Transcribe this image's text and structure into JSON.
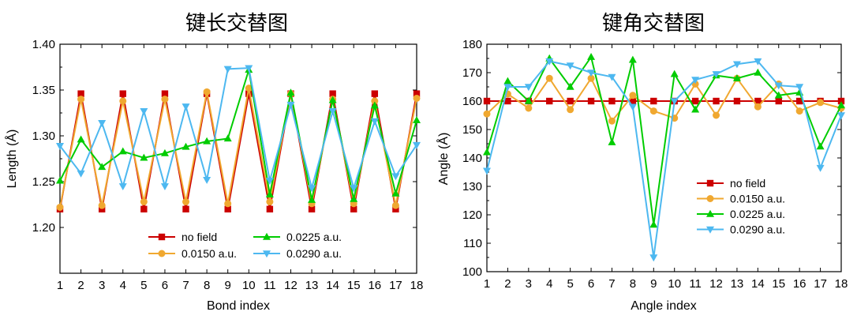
{
  "chart_data": [
    {
      "type": "line",
      "title": "键长交替图",
      "xlabel": "Bond index",
      "ylabel": "Length (Å)",
      "xlim": [
        1,
        18
      ],
      "ylim": [
        1.15,
        1.4
      ],
      "xticks": [
        1,
        2,
        3,
        4,
        5,
        6,
        7,
        8,
        9,
        10,
        11,
        12,
        13,
        14,
        15,
        16,
        17,
        18
      ],
      "yticks": [
        1.2,
        1.25,
        1.3,
        1.35,
        1.4
      ],
      "ytick_labels": [
        "1.20",
        "1.25",
        "1.30",
        "1.35",
        "1.40"
      ],
      "legend_position": "bottom-center",
      "legend_columns": 2,
      "x": [
        1,
        2,
        3,
        4,
        5,
        6,
        7,
        8,
        9,
        10,
        11,
        12,
        13,
        14,
        15,
        16,
        17,
        18
      ],
      "series": [
        {
          "name": "no field",
          "color": "#cc0000",
          "marker": "square",
          "values": [
            1.22,
            1.346,
            1.22,
            1.346,
            1.22,
            1.346,
            1.22,
            1.346,
            1.22,
            1.346,
            1.22,
            1.346,
            1.22,
            1.346,
            1.22,
            1.346,
            1.22,
            1.346
          ]
        },
        {
          "name": "0.0150 a.u.",
          "color": "#f0a830",
          "marker": "circle",
          "values": [
            1.222,
            1.34,
            1.224,
            1.338,
            1.228,
            1.34,
            1.228,
            1.348,
            1.226,
            1.352,
            1.228,
            1.346,
            1.226,
            1.34,
            1.226,
            1.338,
            1.224,
            1.341
          ]
        },
        {
          "name": "0.0225 a.u.",
          "color": "#00cc00",
          "marker": "triangle-up",
          "values": [
            1.251,
            1.296,
            1.266,
            1.283,
            1.276,
            1.281,
            1.288,
            1.294,
            1.297,
            1.372,
            1.236,
            1.347,
            1.23,
            1.339,
            1.231,
            1.333,
            1.237,
            1.317
          ]
        },
        {
          "name": "0.0290 a.u.",
          "color": "#4db8f0",
          "marker": "triangle-down",
          "values": [
            1.289,
            1.259,
            1.314,
            1.245,
            1.327,
            1.245,
            1.332,
            1.252,
            1.373,
            1.374,
            1.251,
            1.334,
            1.243,
            1.327,
            1.243,
            1.316,
            1.256,
            1.29
          ]
        }
      ]
    },
    {
      "type": "line",
      "title": "键角交替图",
      "xlabel": "Angle index",
      "ylabel": "Angle (Å)",
      "xlim": [
        1,
        18
      ],
      "ylim": [
        100,
        180
      ],
      "xticks": [
        1,
        2,
        3,
        4,
        5,
        6,
        7,
        8,
        9,
        10,
        11,
        12,
        13,
        14,
        15,
        16,
        17,
        18
      ],
      "yticks": [
        100,
        110,
        120,
        130,
        140,
        150,
        160,
        170,
        180
      ],
      "ytick_labels": [
        "100",
        "110",
        "120",
        "130",
        "140",
        "150",
        "160",
        "170",
        "180"
      ],
      "legend_position": "bottom-right",
      "legend_columns": 1,
      "x": [
        1,
        2,
        3,
        4,
        5,
        6,
        7,
        8,
        9,
        10,
        11,
        12,
        13,
        14,
        15,
        16,
        17,
        18
      ],
      "series": [
        {
          "name": "no field",
          "color": "#cc0000",
          "marker": "square",
          "values": [
            160,
            160,
            160,
            160,
            160,
            160,
            160,
            160,
            160,
            160,
            160,
            160,
            160,
            160,
            160,
            160,
            160,
            160
          ]
        },
        {
          "name": "0.0150 a.u.",
          "color": "#f0a830",
          "marker": "circle",
          "values": [
            155.5,
            162.5,
            157.5,
            168,
            157,
            168,
            153,
            162,
            156.5,
            154,
            166,
            155,
            168,
            158,
            166,
            156.5,
            159.5,
            157.5
          ]
        },
        {
          "name": "0.0225 a.u.",
          "color": "#00cc00",
          "marker": "triangle-up",
          "values": [
            142,
            167,
            160,
            175,
            165,
            175.5,
            145.5,
            174.5,
            116.5,
            169.5,
            157,
            169,
            168,
            170,
            162,
            163,
            144,
            158.5
          ]
        },
        {
          "name": "0.0290 a.u.",
          "color": "#4db8f0",
          "marker": "triangle-down",
          "values": [
            135.5,
            165,
            165,
            174,
            172.5,
            170,
            168.5,
            158,
            105,
            160,
            167.5,
            169.5,
            173,
            174,
            165.5,
            165,
            136.5,
            155
          ]
        }
      ]
    }
  ]
}
